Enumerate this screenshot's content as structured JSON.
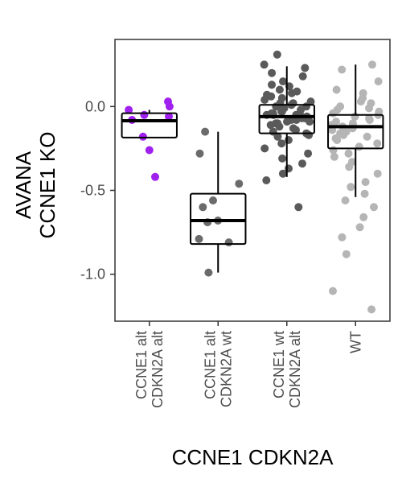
{
  "chart_data": {
    "type": "box",
    "xlabel": "CCNE1 CDKN2A",
    "ylabel_lines": [
      "AVANA",
      "CCNE1 KO"
    ],
    "ylim": [
      -1.28,
      0.4
    ],
    "yticks": [
      0.0,
      -0.5,
      -1.0
    ],
    "ytick_labels": [
      "0.0",
      "-0.5",
      "-1.0"
    ],
    "grid": false,
    "legend": "none",
    "categories": [
      {
        "lines": [
          "CCNE1 alt",
          "CDKN2A alt"
        ],
        "color": "#a020f0",
        "box": {
          "q1": -0.185,
          "median": -0.085,
          "q3": -0.04,
          "whisker_low": -0.185,
          "whisker_high": -0.02
        },
        "points": [
          0.03,
          0.0,
          -0.02,
          -0.05,
          -0.06,
          -0.08,
          -0.18,
          -0.26,
          -0.42
        ]
      },
      {
        "lines": [
          "CCNE1 alt",
          "CDKN2A wt"
        ],
        "color": "#6b6b6b",
        "box": {
          "q1": -0.82,
          "median": -0.68,
          "q3": -0.52,
          "whisker_low": -0.99,
          "whisker_high": -0.15
        },
        "points": [
          -0.15,
          -0.28,
          -0.46,
          -0.56,
          -0.6,
          -0.68,
          -0.69,
          -0.79,
          -0.81,
          -0.99
        ]
      },
      {
        "lines": [
          "CCNE1 wt",
          "CDKN2A alt"
        ],
        "color": "#5a5a5a",
        "box": {
          "q1": -0.16,
          "median": -0.06,
          "q3": 0.01,
          "whisker_low": -0.42,
          "whisker_high": 0.24
        },
        "points": [
          0.31,
          0.25,
          0.23,
          0.2,
          0.18,
          0.15,
          0.13,
          0.12,
          0.1,
          0.09,
          0.08,
          0.07,
          0.06,
          0.05,
          0.04,
          0.03,
          0.02,
          0.02,
          0.01,
          0.0,
          0.0,
          -0.01,
          -0.01,
          -0.02,
          -0.02,
          -0.03,
          -0.03,
          -0.04,
          -0.04,
          -0.05,
          -0.05,
          -0.05,
          -0.06,
          -0.06,
          -0.06,
          -0.07,
          -0.07,
          -0.08,
          -0.08,
          -0.09,
          -0.09,
          -0.1,
          -0.1,
          -0.11,
          -0.12,
          -0.13,
          -0.14,
          -0.15,
          -0.16,
          -0.17,
          -0.18,
          -0.2,
          -0.22,
          -0.25,
          -0.28,
          -0.31,
          -0.34,
          -0.37,
          -0.4,
          -0.44,
          -0.6
        ]
      },
      {
        "lines": [
          "WT"
        ],
        "color": "#b5b5b5",
        "box": {
          "q1": -0.25,
          "median": -0.12,
          "q3": -0.05,
          "whisker_low": -0.54,
          "whisker_high": 0.25
        },
        "points": [
          0.25,
          0.22,
          0.15,
          0.1,
          0.08,
          0.05,
          0.03,
          0.02,
          0.0,
          -0.01,
          -0.02,
          -0.03,
          -0.04,
          -0.05,
          -0.06,
          -0.07,
          -0.08,
          -0.09,
          -0.1,
          -0.11,
          -0.12,
          -0.13,
          -0.14,
          -0.15,
          -0.16,
          -0.17,
          -0.18,
          -0.19,
          -0.2,
          -0.22,
          -0.24,
          -0.26,
          -0.28,
          -0.3,
          -0.33,
          -0.36,
          -0.4,
          -0.45,
          -0.48,
          -0.52,
          -0.56,
          -0.6,
          -0.66,
          -0.72,
          -0.78,
          -0.88,
          -1.1,
          -1.21
        ]
      }
    ]
  }
}
